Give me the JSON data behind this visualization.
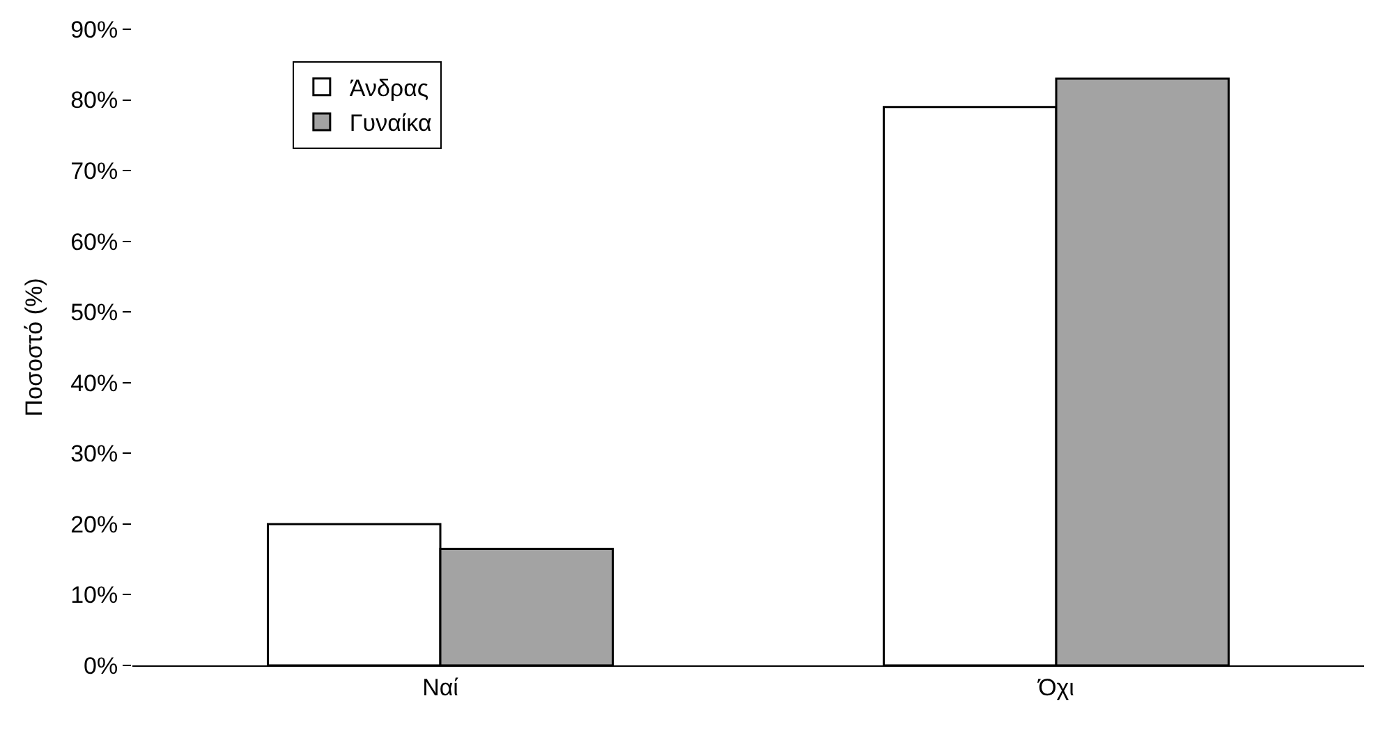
{
  "chart_data": {
    "type": "bar",
    "ylabel": "Ποσοστό (%)",
    "categories": [
      "Ναί",
      "Όχι"
    ],
    "series": [
      {
        "name": "Άνδρας",
        "color": "#ffffff",
        "values": [
          20,
          79
        ]
      },
      {
        "name": "Γυναίκα",
        "color": "#a3a3a3",
        "values": [
          16.5,
          83
        ]
      }
    ],
    "ylim": [
      0,
      90
    ],
    "yticks": [
      {
        "value": 0,
        "label": "0%"
      },
      {
        "value": 10,
        "label": "10%"
      },
      {
        "value": 20,
        "label": "20%"
      },
      {
        "value": 30,
        "label": "30%"
      },
      {
        "value": 40,
        "label": "40%"
      },
      {
        "value": 50,
        "label": "50%"
      },
      {
        "value": 60,
        "label": "60%"
      },
      {
        "value": 70,
        "label": "70%"
      },
      {
        "value": 80,
        "label": "80%"
      },
      {
        "value": 90,
        "label": "90%"
      }
    ],
    "legend": "top left"
  }
}
